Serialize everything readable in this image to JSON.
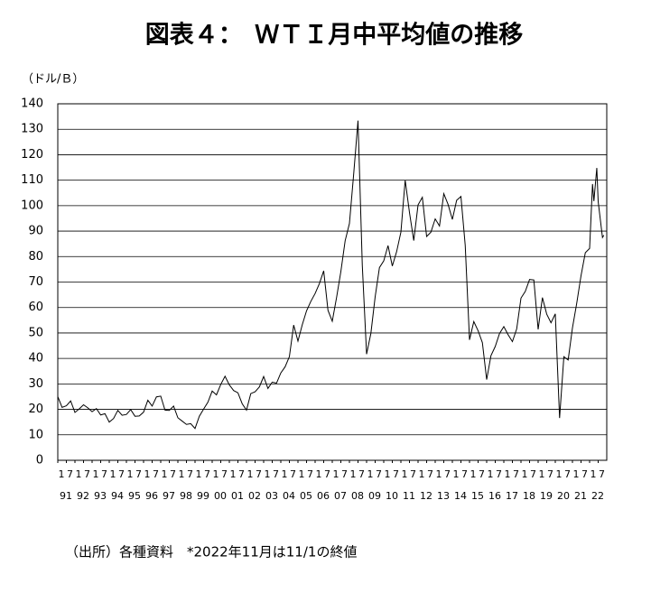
{
  "chart_data": {
    "type": "line",
    "title": "図表４：　ＷＴＩ月中平均値の推移",
    "y_unit_label": "（ドル/Ｂ）",
    "footnote": "（出所）各種資料　*2022年11月は11/1の終値",
    "x": [
      1991,
      1991.25,
      1991.5,
      1991.75,
      1992,
      1992.25,
      1992.5,
      1992.75,
      1993,
      1993.25,
      1993.5,
      1993.75,
      1994,
      1994.25,
      1994.5,
      1994.75,
      1995,
      1995.25,
      1995.5,
      1995.75,
      1996,
      1996.25,
      1996.5,
      1996.75,
      1997,
      1997.25,
      1997.5,
      1997.75,
      1998,
      1998.25,
      1998.5,
      1998.75,
      1999,
      1999.25,
      1999.5,
      1999.75,
      2000,
      2000.25,
      2000.5,
      2000.75,
      2001,
      2001.25,
      2001.5,
      2001.75,
      2002,
      2002.25,
      2002.5,
      2002.75,
      2003,
      2003.25,
      2003.5,
      2003.75,
      2004,
      2004.25,
      2004.5,
      2004.75,
      2005,
      2005.25,
      2005.5,
      2005.75,
      2006,
      2006.25,
      2006.5,
      2006.75,
      2007,
      2007.25,
      2007.5,
      2007.75,
      2008,
      2008.25,
      2008.5,
      2008.75,
      2009,
      2009.25,
      2009.5,
      2009.75,
      2010,
      2010.25,
      2010.5,
      2010.75,
      2011,
      2011.25,
      2011.5,
      2011.75,
      2012,
      2012.25,
      2012.5,
      2012.75,
      2013,
      2013.25,
      2013.5,
      2013.75,
      2014,
      2014.25,
      2014.5,
      2014.75,
      2015,
      2015.25,
      2015.5,
      2015.75,
      2016,
      2016.25,
      2016.5,
      2016.75,
      2017,
      2017.25,
      2017.5,
      2017.75,
      2018,
      2018.25,
      2018.5,
      2018.75,
      2019,
      2019.25,
      2019.5,
      2019.75,
      2020,
      2020.25,
      2020.5,
      2020.75,
      2021,
      2021.25,
      2021.5,
      2021.75,
      2022,
      2022.17,
      2022.25,
      2022.42,
      2022.5,
      2022.75,
      2022.83
    ],
    "series": [
      {
        "name": "WTI",
        "color": "#000000",
        "values": [
          25,
          20.8,
          21.4,
          23.3,
          18.8,
          20.2,
          21.8,
          20.6,
          19.1,
          20.3,
          17.8,
          18.3,
          15,
          16.4,
          19.6,
          17.7,
          18,
          19.9,
          17.3,
          17.4,
          18.9,
          23.6,
          21.3,
          24.9,
          25.2,
          19.7,
          19.6,
          21.3,
          16.7,
          15.4,
          14.1,
          14.4,
          12.5,
          17.3,
          20.1,
          22.8,
          27.2,
          25.7,
          29.8,
          33,
          29.6,
          27.4,
          26.5,
          22.2,
          19.7,
          26.2,
          26.9,
          28.8,
          32.9,
          28.2,
          30.7,
          30.3,
          34.3,
          36.7,
          40.7,
          53.1,
          46.8,
          53.2,
          58.7,
          62.4,
          65.5,
          69.4,
          74.4,
          58.9,
          54.6,
          63.9,
          74.1,
          86.2,
          93,
          112.6,
          133.4,
          76.6,
          41.7,
          49.8,
          64.2,
          75.7,
          78.3,
          84.3,
          76.3,
          81.9,
          89.6,
          110,
          97.3,
          86.3,
          100.3,
          103.3,
          87.9,
          89.6,
          94.8,
          92,
          104.7,
          100.5,
          94.6,
          102.1,
          103.6,
          84.4,
          47.3,
          54.5,
          50.9,
          46.2,
          31.7,
          41.1,
          44.7,
          49.8,
          52.5,
          49.3,
          46.6,
          51.6,
          63.7,
          66.3,
          71,
          70.8,
          51.4,
          63.9,
          57.4,
          54,
          57.5,
          16.6,
          40.7,
          39.4,
          52,
          61.7,
          72.5,
          81.5,
          83.2,
          108.5,
          101.8,
          114.8,
          101.6,
          87.5,
          88.4
        ]
      }
    ],
    "xlim": [
      1991,
      2023
    ],
    "ylim": [
      0,
      140
    ],
    "yticks": [
      0,
      10,
      20,
      30,
      40,
      50,
      60,
      70,
      80,
      90,
      100,
      110,
      120,
      130,
      140
    ],
    "grid": true,
    "xticks": [
      {
        "value": 1991,
        "label": "1"
      },
      {
        "value": 1991.5,
        "label": "7"
      },
      {
        "value": 1992,
        "label": "1"
      },
      {
        "value": 1992.5,
        "label": "7"
      },
      {
        "value": 1993,
        "label": "1"
      },
      {
        "value": 1993.5,
        "label": "7"
      },
      {
        "value": 1994,
        "label": "1"
      },
      {
        "value": 1994.5,
        "label": "7"
      },
      {
        "value": 1995,
        "label": "1"
      },
      {
        "value": 1995.5,
        "label": "7"
      },
      {
        "value": 1996,
        "label": "1"
      },
      {
        "value": 1996.5,
        "label": "7"
      },
      {
        "value": 1997,
        "label": "1"
      },
      {
        "value": 1997.5,
        "label": "7"
      },
      {
        "value": 1998,
        "label": "1"
      },
      {
        "value": 1998.5,
        "label": "7"
      },
      {
        "value": 1999,
        "label": "1"
      },
      {
        "value": 1999.5,
        "label": "7"
      },
      {
        "value": 2000,
        "label": "1"
      },
      {
        "value": 2000.5,
        "label": "7"
      },
      {
        "value": 2001,
        "label": "1"
      },
      {
        "value": 2001.5,
        "label": "7"
      },
      {
        "value": 2002,
        "label": "1"
      },
      {
        "value": 2002.5,
        "label": "7"
      },
      {
        "value": 2003,
        "label": "1"
      },
      {
        "value": 2003.5,
        "label": "7"
      },
      {
        "value": 2004,
        "label": "1"
      },
      {
        "value": 2004.5,
        "label": "7"
      },
      {
        "value": 2005,
        "label": "1"
      },
      {
        "value": 2005.5,
        "label": "7"
      },
      {
        "value": 2006,
        "label": "1"
      },
      {
        "value": 2006.5,
        "label": "7"
      },
      {
        "value": 2007,
        "label": "1"
      },
      {
        "value": 2007.5,
        "label": "7"
      },
      {
        "value": 2008,
        "label": "1"
      },
      {
        "value": 2008.5,
        "label": "7"
      },
      {
        "value": 2009,
        "label": "1"
      },
      {
        "value": 2009.5,
        "label": "7"
      },
      {
        "value": 2010,
        "label": "1"
      },
      {
        "value": 2010.5,
        "label": "7"
      },
      {
        "value": 2011,
        "label": "1"
      },
      {
        "value": 2011.5,
        "label": "7"
      },
      {
        "value": 2012,
        "label": "1"
      },
      {
        "value": 2012.5,
        "label": "7"
      },
      {
        "value": 2013,
        "label": "1"
      },
      {
        "value": 2013.5,
        "label": "7"
      },
      {
        "value": 2014,
        "label": "1"
      },
      {
        "value": 2014.5,
        "label": "7"
      },
      {
        "value": 2015,
        "label": "1"
      },
      {
        "value": 2015.5,
        "label": "7"
      },
      {
        "value": 2016,
        "label": "1"
      },
      {
        "value": 2016.5,
        "label": "7"
      },
      {
        "value": 2017,
        "label": "1"
      },
      {
        "value": 2017.5,
        "label": "7"
      },
      {
        "value": 2018,
        "label": "1"
      },
      {
        "value": 2018.5,
        "label": "7"
      },
      {
        "value": 2019,
        "label": "1"
      },
      {
        "value": 2019.5,
        "label": "7"
      },
      {
        "value": 2020,
        "label": "1"
      },
      {
        "value": 2020.5,
        "label": "7"
      },
      {
        "value": 2021,
        "label": "1"
      },
      {
        "value": 2021.5,
        "label": "7"
      },
      {
        "value": 2022,
        "label": "1"
      },
      {
        "value": 2022.5,
        "label": "7"
      }
    ],
    "year_labels": [
      {
        "value": 1991,
        "label": "91"
      },
      {
        "value": 1992,
        "label": "92"
      },
      {
        "value": 1993,
        "label": "93"
      },
      {
        "value": 1994,
        "label": "94"
      },
      {
        "value": 1995,
        "label": "95"
      },
      {
        "value": 1996,
        "label": "96"
      },
      {
        "value": 1997,
        "label": "97"
      },
      {
        "value": 1998,
        "label": "98"
      },
      {
        "value": 1999,
        "label": "99"
      },
      {
        "value": 2000,
        "label": "00"
      },
      {
        "value": 2001,
        "label": "01"
      },
      {
        "value": 2002,
        "label": "02"
      },
      {
        "value": 2003,
        "label": "03"
      },
      {
        "value": 2004,
        "label": "04"
      },
      {
        "value": 2005,
        "label": "05"
      },
      {
        "value": 2006,
        "label": "06"
      },
      {
        "value": 2007,
        "label": "07"
      },
      {
        "value": 2008,
        "label": "08"
      },
      {
        "value": 2009,
        "label": "09"
      },
      {
        "value": 2010,
        "label": "10"
      },
      {
        "value": 2011,
        "label": "11"
      },
      {
        "value": 2012,
        "label": "12"
      },
      {
        "value": 2013,
        "label": "13"
      },
      {
        "value": 2014,
        "label": "14"
      },
      {
        "value": 2015,
        "label": "15"
      },
      {
        "value": 2016,
        "label": "16"
      },
      {
        "value": 2017,
        "label": "17"
      },
      {
        "value": 2018,
        "label": "18"
      },
      {
        "value": 2019,
        "label": "19"
      },
      {
        "value": 2020,
        "label": "20"
      },
      {
        "value": 2021,
        "label": "21"
      },
      {
        "value": 2022,
        "label": "22"
      }
    ]
  }
}
